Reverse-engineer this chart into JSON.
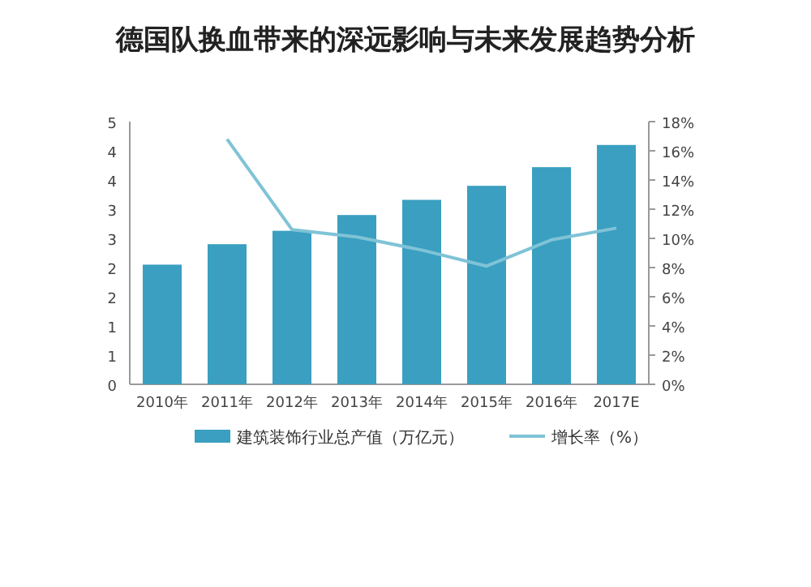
{
  "chart_data": {
    "type": "bar",
    "title": "德国队换血带来的深远影响与未来发展趋势分析",
    "categories": [
      "2010年",
      "2011年",
      "2012年",
      "2013年",
      "2014年",
      "2015年",
      "2016年",
      "2017E"
    ],
    "series": [
      {
        "name": "建筑装饰行业总产值（万亿元）",
        "color": "#3a9fc0",
        "values": [
          2.05,
          2.4,
          2.63,
          2.9,
          3.16,
          3.4,
          3.72,
          4.1
        ]
      },
      {
        "name": "增长率（%）",
        "type": "line",
        "axis": "y2",
        "color": "#7fc3d6",
        "values": [
          null,
          16.8,
          10.6,
          10.1,
          9.2,
          8.1,
          9.9,
          10.7
        ]
      }
    ],
    "ylim": [
      0,
      4.5
    ],
    "yticks": [
      0,
      {
        "value": 0.5,
        "label": "1"
      },
      1,
      {
        "value": 1.5,
        "label": "2"
      },
      2,
      {
        "value": 2.5,
        "label": "3"
      },
      3,
      {
        "value": 3.5,
        "label": "4"
      },
      4,
      {
        "value": 4.5,
        "label": "5"
      }
    ],
    "y2lim": [
      0,
      18
    ],
    "y2ticks": [
      {
        "value": 0,
        "label": "0%"
      },
      {
        "value": 2,
        "label": "2%"
      },
      {
        "value": 4,
        "label": "4%"
      },
      {
        "value": 6,
        "label": "6%"
      },
      {
        "value": 8,
        "label": "8%"
      },
      {
        "value": 10,
        "label": "10%"
      },
      {
        "value": 12,
        "label": "12%"
      },
      {
        "value": 14,
        "label": "14%"
      },
      {
        "value": 16,
        "label": "16%"
      },
      {
        "value": 18,
        "label": "18%"
      }
    ],
    "legend": "bottom",
    "grid": false
  }
}
